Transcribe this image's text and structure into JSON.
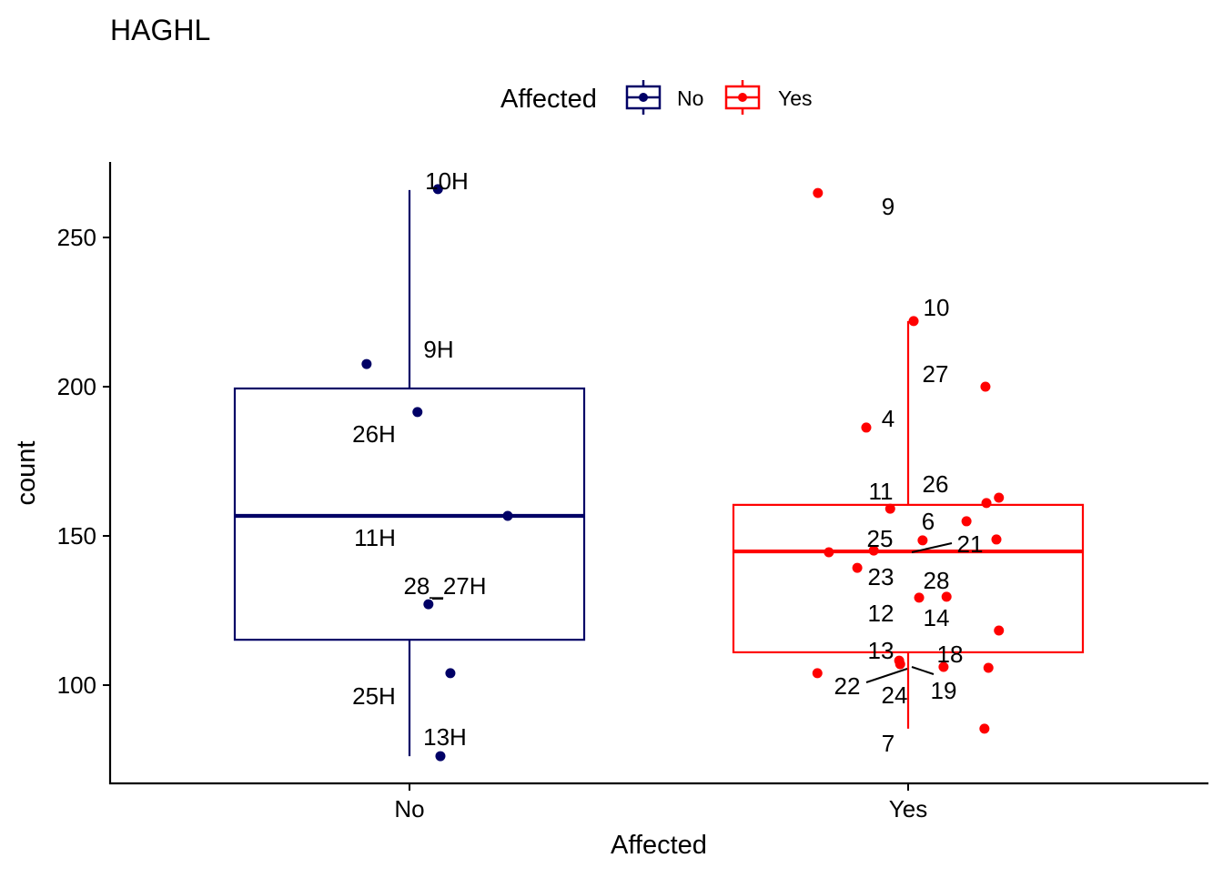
{
  "chart_data": {
    "type": "boxplot",
    "title": "HAGHL",
    "xlabel": "Affected",
    "ylabel": "count",
    "categories": [
      "No",
      "Yes"
    ],
    "yticks": [
      100,
      150,
      200,
      250
    ],
    "ylim": [
      67,
      275
    ],
    "grid": false,
    "legend": {
      "title": "Affected",
      "placement": "top",
      "entries": [
        {
          "label": "No",
          "color": "#000066"
        },
        {
          "label": "Yes",
          "color": "#FF0000"
        }
      ]
    },
    "boxes": [
      {
        "category": "No",
        "color": "#000066",
        "lower_whisker": 76.2,
        "q1": 115.2,
        "median": 156.7,
        "q3": 199.4,
        "upper_whisker": 265.9
      },
      {
        "category": "Yes",
        "color": "#FF0000",
        "lower_whisker": 85.4,
        "q1": 111.0,
        "median": 144.8,
        "q3": 160.4,
        "upper_whisker": 222.0
      }
    ],
    "points": [
      {
        "category": "No",
        "jitter": 0.057,
        "value": 266.2,
        "label": "10H"
      },
      {
        "category": "No",
        "jitter": -0.086,
        "value": 207.6,
        "label": "9H"
      },
      {
        "category": "No",
        "jitter": 0.016,
        "value": 191.5,
        "label": "26H"
      },
      {
        "category": "No",
        "jitter": 0.197,
        "value": 156.7,
        "label": "11H"
      },
      {
        "category": "No",
        "jitter": 0.038,
        "value": 127.1,
        "label": "28_27H"
      },
      {
        "category": "No",
        "jitter": 0.082,
        "value": 104.0,
        "label": "25H"
      },
      {
        "category": "No",
        "jitter": 0.062,
        "value": 76.2,
        "label": "13H"
      },
      {
        "category": "Yes",
        "jitter": -0.181,
        "value": 264.9,
        "label": "9"
      },
      {
        "category": "Yes",
        "jitter": 0.011,
        "value": 222.0,
        "label": "10"
      },
      {
        "category": "Yes",
        "jitter": 0.155,
        "value": 200.0,
        "label": "27"
      },
      {
        "category": "Yes",
        "jitter": -0.084,
        "value": 186.3,
        "label": "4"
      },
      {
        "category": "Yes",
        "jitter": -0.036,
        "value": 159.1,
        "label": "11"
      },
      {
        "category": "Yes",
        "jitter": 0.182,
        "value": 162.8,
        "label": "26"
      },
      {
        "category": "Yes",
        "jitter": 0.157,
        "value": 161.0,
        "label": null
      },
      {
        "category": "Yes",
        "jitter": 0.117,
        "value": 154.9,
        "label": "6"
      },
      {
        "category": "Yes",
        "jitter": 0.029,
        "value": 148.5,
        "label": "21"
      },
      {
        "category": "Yes",
        "jitter": 0.177,
        "value": 148.8,
        "label": null
      },
      {
        "category": "Yes",
        "jitter": -0.159,
        "value": 144.5,
        "label": null
      },
      {
        "category": "Yes",
        "jitter": -0.069,
        "value": 145.1,
        "label": "25"
      },
      {
        "category": "Yes",
        "jitter": -0.102,
        "value": 139.3,
        "label": "23"
      },
      {
        "category": "Yes",
        "jitter": 0.022,
        "value": 129.3,
        "label": "28"
      },
      {
        "category": "Yes",
        "jitter": 0.077,
        "value": 129.6,
        "label": "14"
      },
      {
        "category": "Yes",
        "jitter": 0.182,
        "value": 118.3,
        "label": "12"
      },
      {
        "category": "Yes",
        "jitter": -0.018,
        "value": 108.2,
        "label": "13"
      },
      {
        "category": "Yes",
        "jitter": -0.016,
        "value": 107.0,
        "label": "24"
      },
      {
        "category": "Yes",
        "jitter": 0.071,
        "value": 106.1,
        "label": "18"
      },
      {
        "category": "Yes",
        "jitter": 0.161,
        "value": 105.8,
        "label": "19"
      },
      {
        "category": "Yes",
        "jitter": -0.182,
        "value": 104.0,
        "label": "22"
      },
      {
        "category": "Yes",
        "jitter": 0.153,
        "value": 85.4,
        "label": "7"
      }
    ]
  }
}
